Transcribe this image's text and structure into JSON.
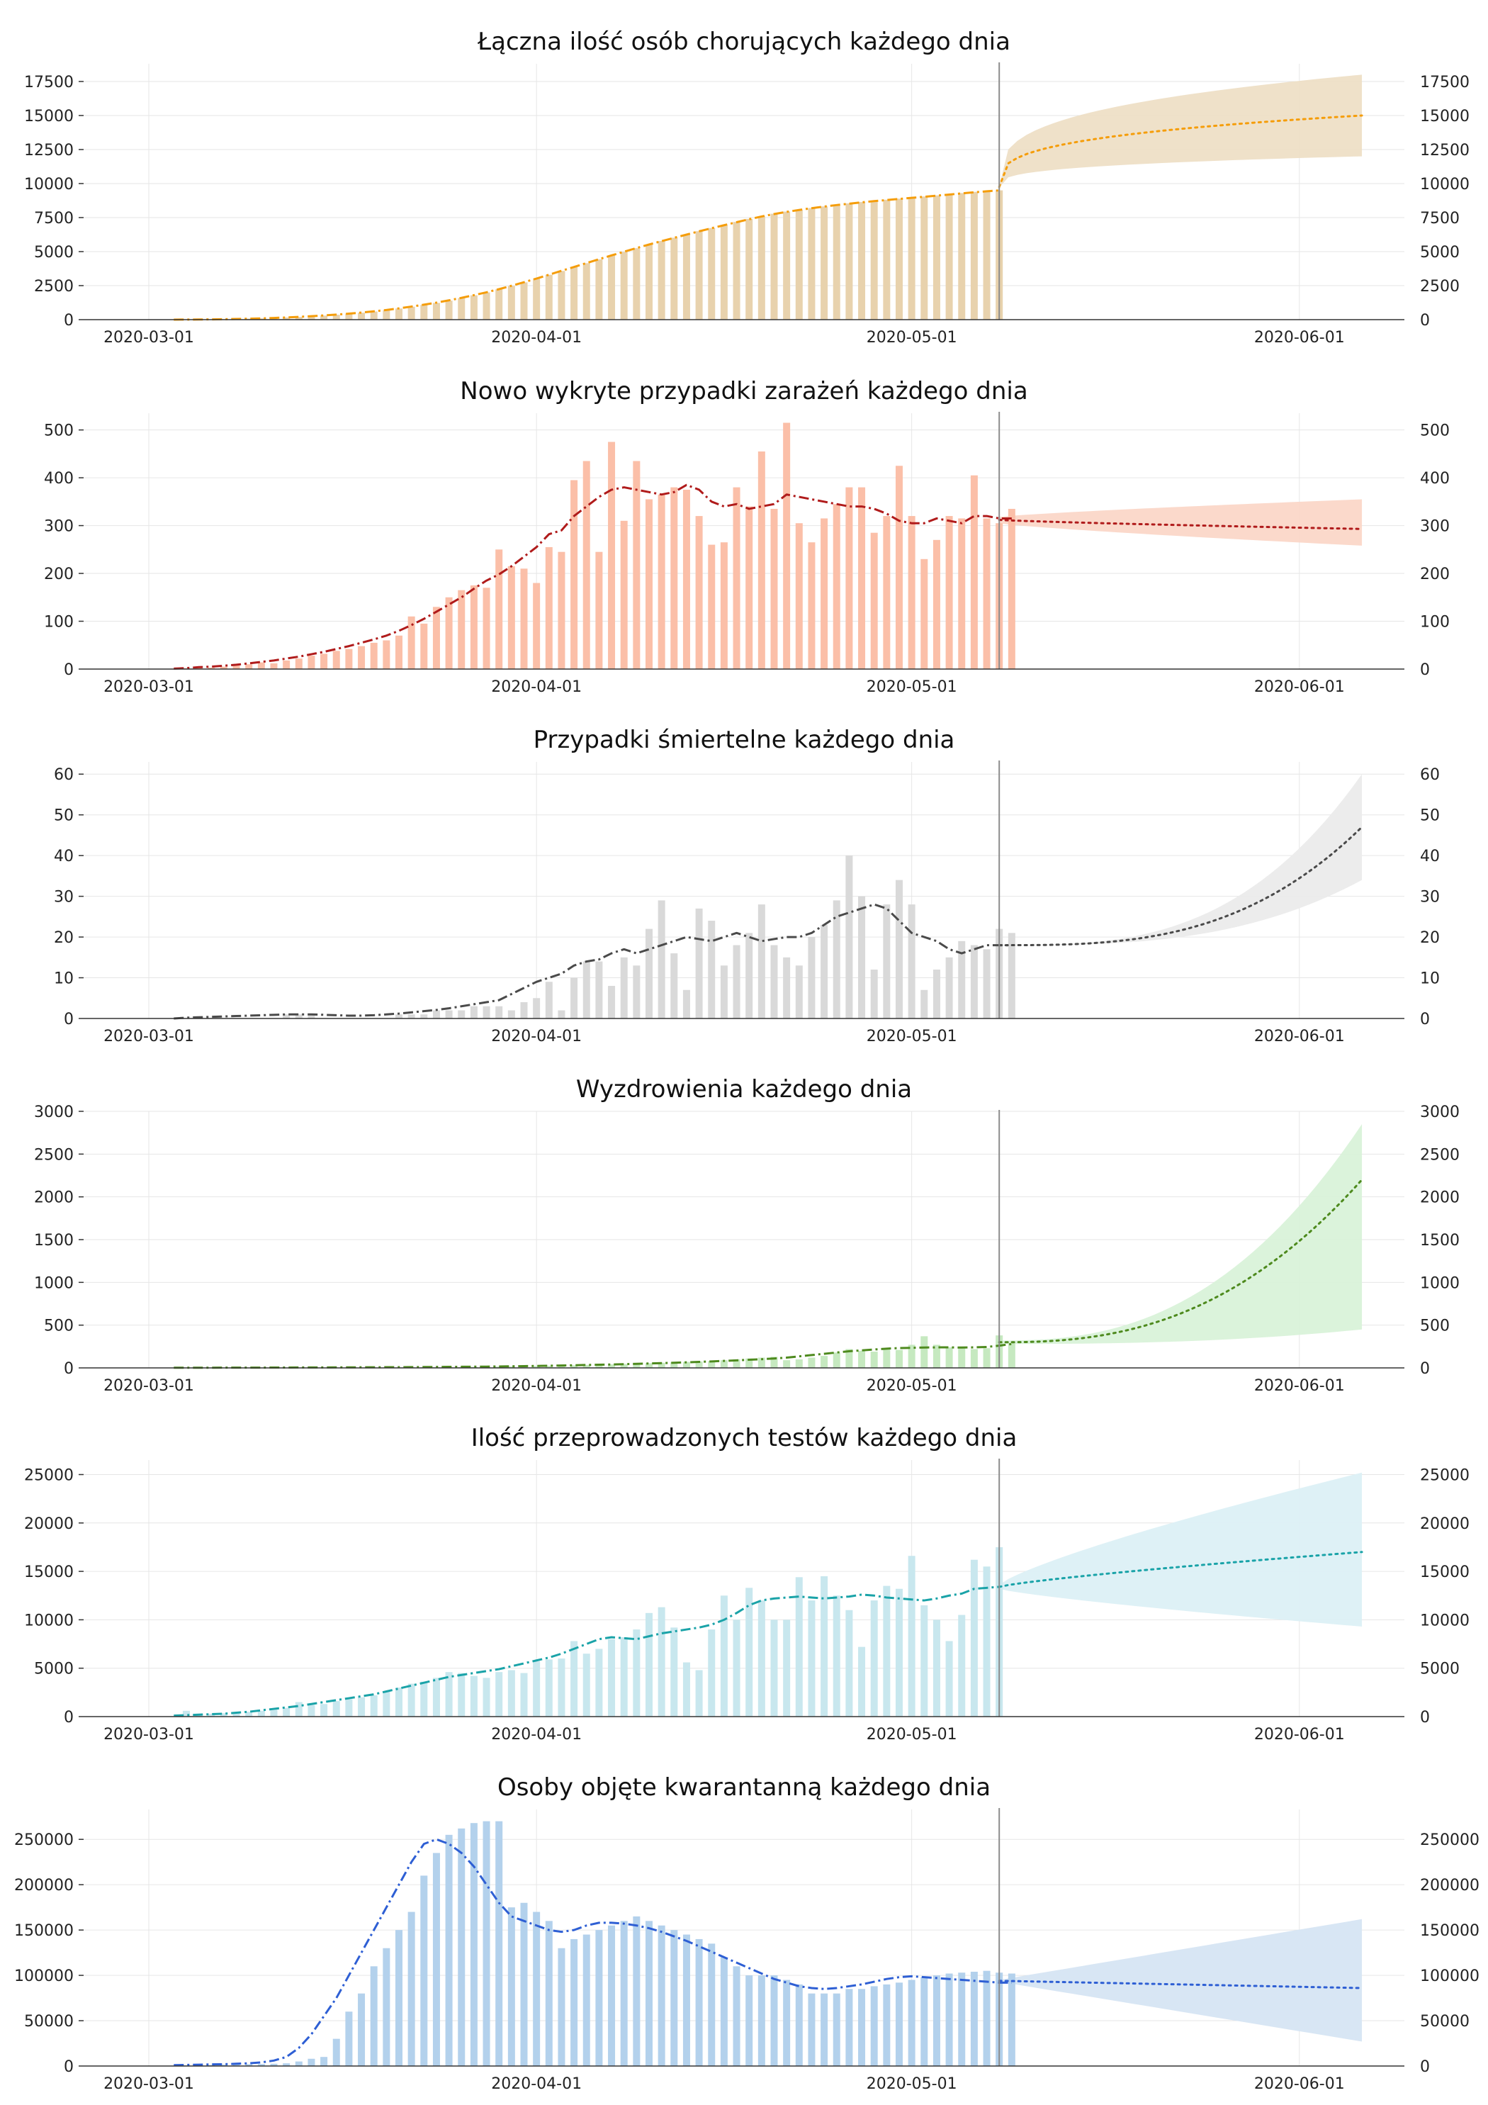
{
  "chart_data": [
    {
      "type": "bar",
      "title": "Łączna ilość osób chorujących każdego dnia",
      "date_labels": [
        "2020-03-01",
        "2020-04-01",
        "2020-05-01",
        "2020-06-01"
      ],
      "yticks": [
        0,
        2500,
        5000,
        7500,
        10000,
        12500,
        15000,
        17500
      ],
      "ylim": [
        0,
        18800
      ],
      "bar_color": "#e8d2ad",
      "line_color": "#f59d0a",
      "band_color": "#eedfc6",
      "start_day": 2,
      "values": [
        2,
        5,
        10,
        20,
        30,
        50,
        70,
        90,
        120,
        160,
        200,
        250,
        300,
        360,
        430,
        510,
        600,
        700,
        820,
        950,
        1080,
        1230,
        1400,
        1580,
        1790,
        2000,
        2230,
        2480,
        2740,
        3020,
        3300,
        3580,
        3870,
        4150,
        4430,
        4720,
        4980,
        5250,
        5520,
        5780,
        6020,
        6260,
        6500,
        6730,
        6950,
        7180,
        7400,
        7600,
        7780,
        7940,
        8080,
        8200,
        8320,
        8430,
        8540,
        8640,
        8730,
        8810,
        8890,
        8970,
        9050,
        9130,
        9210,
        9300,
        9390,
        9460,
        9500
      ],
      "trend": [
        3,
        6,
        11,
        20,
        32,
        50,
        70,
        95,
        125,
        160,
        205,
        255,
        310,
        370,
        440,
        520,
        610,
        710,
        830,
        960,
        1100,
        1250,
        1420,
        1600,
        1800,
        2010,
        2240,
        2490,
        2750,
        3020,
        3300,
        3590,
        3870,
        4160,
        4440,
        4720,
        4990,
        5260,
        5520,
        5770,
        6010,
        6250,
        6490,
        6720,
        6940,
        7160,
        7380,
        7580,
        7760,
        7920,
        8060,
        8190,
        8310,
        8420,
        8520,
        8620,
        8710,
        8790,
        8870,
        8950,
        9030,
        9110,
        9190,
        9280,
        9360,
        9430,
        9500
      ],
      "forecast_start_day": 68,
      "forecast_end_day": 97,
      "forecast_mid": [
        9750,
        15000
      ],
      "forecast_lower": [
        9700,
        12000
      ],
      "forecast_upper": [
        9800,
        18000
      ],
      "forecast_curve": 0.3
    },
    {
      "type": "bar",
      "title": "Nowo wykryte przypadki zarażeń każdego dnia",
      "date_labels": [
        "2020-03-01",
        "2020-04-01",
        "2020-05-01",
        "2020-06-01"
      ],
      "yticks": [
        0,
        100,
        200,
        300,
        400,
        500
      ],
      "ylim": [
        0,
        535
      ],
      "bar_color": "#fbbfa8",
      "line_color": "#b01b1b",
      "band_color": "#fbd7c8",
      "start_day": 2,
      "values": [
        1,
        2,
        4,
        3,
        5,
        8,
        10,
        14,
        12,
        18,
        22,
        28,
        32,
        38,
        42,
        48,
        55,
        60,
        70,
        110,
        95,
        130,
        150,
        165,
        175,
        170,
        250,
        215,
        210,
        180,
        255,
        245,
        395,
        435,
        245,
        475,
        310,
        435,
        355,
        365,
        380,
        375,
        320,
        260,
        265,
        380,
        340,
        455,
        335,
        515,
        305,
        265,
        315,
        345,
        380,
        380,
        285,
        320,
        425,
        320,
        230,
        270,
        320,
        315,
        405,
        315,
        305,
        335
      ],
      "trend": [
        1,
        2,
        4,
        5,
        7,
        9,
        12,
        15,
        18,
        22,
        26,
        31,
        36,
        42,
        48,
        55,
        62,
        70,
        80,
        92,
        105,
        120,
        135,
        150,
        168,
        185,
        198,
        215,
        235,
        255,
        282,
        290,
        320,
        340,
        360,
        375,
        380,
        375,
        370,
        365,
        370,
        385,
        375,
        350,
        340,
        345,
        335,
        340,
        345,
        365,
        360,
        355,
        350,
        345,
        340,
        340,
        335,
        325,
        310,
        305,
        305,
        315,
        310,
        305,
        320,
        320,
        315,
        315
      ],
      "forecast_start_day": 68,
      "forecast_end_day": 97,
      "forecast_mid": [
        312,
        293
      ],
      "forecast_lower": [
        305,
        258
      ],
      "forecast_upper": [
        318,
        355
      ],
      "forecast_curve": 0.8
    },
    {
      "type": "bar",
      "title": "Przypadki śmiertelne każdego dnia",
      "date_labels": [
        "2020-03-01",
        "2020-04-01",
        "2020-05-01",
        "2020-06-01"
      ],
      "yticks": [
        0,
        10,
        20,
        30,
        40,
        50,
        60
      ],
      "ylim": [
        0,
        63
      ],
      "bar_color": "#d9d9d9",
      "line_color": "#4a4a4a",
      "band_color": "#ebebeb",
      "start_day": 2,
      "values": [
        0,
        0,
        0,
        0,
        0,
        0,
        0,
        0,
        0,
        1,
        1,
        1,
        0,
        0,
        0,
        0,
        0,
        0,
        1,
        1,
        1,
        2,
        2,
        2,
        3,
        3,
        3,
        2,
        4,
        5,
        9,
        2,
        10,
        14,
        14,
        8,
        15,
        13,
        22,
        29,
        16,
        7,
        27,
        24,
        13,
        18,
        21,
        28,
        18,
        15,
        13,
        20,
        23,
        29,
        40,
        30,
        12,
        28,
        34,
        28,
        7,
        12,
        15,
        19,
        18,
        17,
        22,
        21
      ],
      "trend": [
        0,
        0.2,
        0.3,
        0.4,
        0.5,
        0.6,
        0.7,
        0.8,
        0.9,
        1,
        1,
        1,
        0.9,
        0.8,
        0.7,
        0.7,
        0.8,
        1,
        1.2,
        1.5,
        1.8,
        2.1,
        2.5,
        3,
        3.5,
        4,
        4.5,
        6,
        7.5,
        9,
        10,
        11,
        13,
        14,
        14.5,
        16,
        17,
        16,
        17,
        18,
        19,
        20,
        19.5,
        19,
        20,
        21,
        20,
        19,
        19.5,
        20,
        20,
        21,
        23,
        25,
        26,
        27,
        28,
        27,
        24,
        21,
        20,
        19,
        17,
        16,
        17,
        18,
        18,
        18
      ],
      "forecast_start_day": 68,
      "forecast_end_day": 97,
      "forecast_mid": [
        18,
        47
      ],
      "forecast_lower": [
        18,
        34
      ],
      "forecast_upper": [
        18,
        60
      ],
      "forecast_curve": 3.0
    },
    {
      "type": "bar",
      "title": "Wyzdrowienia każdego dnia",
      "date_labels": [
        "2020-03-01",
        "2020-04-01",
        "2020-05-01",
        "2020-06-01"
      ],
      "yticks": [
        0,
        500,
        1000,
        1500,
        2000,
        2500,
        3000
      ],
      "ylim": [
        0,
        3000
      ],
      "bar_color": "#c6e9c0",
      "line_color": "#4e8a1e",
      "band_color": "#d9f2d9",
      "start_day": 2,
      "values": [
        0,
        0,
        0,
        0,
        0,
        0,
        0,
        0,
        1,
        1,
        2,
        2,
        3,
        3,
        4,
        4,
        5,
        5,
        6,
        7,
        8,
        9,
        10,
        10,
        12,
        14,
        16,
        18,
        20,
        22,
        25,
        28,
        30,
        35,
        38,
        42,
        46,
        50,
        55,
        60,
        65,
        70,
        75,
        80,
        90,
        100,
        110,
        120,
        130,
        90,
        100,
        120,
        140,
        180,
        220,
        200,
        190,
        230,
        210,
        270,
        370,
        270,
        240,
        230,
        220,
        230,
        380,
        290
      ],
      "trend": [
        2,
        2,
        2,
        2,
        3,
        3,
        3,
        3,
        4,
        4,
        5,
        5,
        5,
        6,
        6,
        7,
        7,
        8,
        8,
        9,
        10,
        11,
        12,
        13,
        14,
        15,
        17,
        19,
        21,
        23,
        25,
        28,
        31,
        34,
        37,
        40,
        44,
        48,
        52,
        56,
        60,
        65,
        70,
        76,
        82,
        88,
        95,
        102,
        110,
        120,
        135,
        150,
        165,
        180,
        195,
        205,
        215,
        225,
        232,
        235,
        238,
        240,
        240,
        238,
        240,
        245,
        260,
        280
      ],
      "forecast_start_day": 68,
      "forecast_end_day": 97,
      "forecast_mid": [
        300,
        2200
      ],
      "forecast_lower": [
        280,
        450
      ],
      "forecast_upper": [
        320,
        2850
      ],
      "forecast_curve": 2.5
    },
    {
      "type": "bar",
      "title": "Ilość przeprowadzonych testów każdego dnia",
      "date_labels": [
        "2020-03-01",
        "2020-04-01",
        "2020-05-01",
        "2020-06-01"
      ],
      "yticks": [
        0,
        5000,
        10000,
        15000,
        20000,
        25000
      ],
      "ylim": [
        0,
        26500
      ],
      "bar_color": "#c8e7ee",
      "line_color": "#1aa3a8",
      "band_color": "#dcf0f6",
      "start_day": 2,
      "values": [
        50,
        600,
        250,
        300,
        350,
        400,
        500,
        600,
        800,
        900,
        1500,
        1200,
        1300,
        1600,
        1800,
        2000,
        2200,
        2600,
        3000,
        3400,
        3600,
        4000,
        4600,
        4500,
        4200,
        4000,
        4600,
        4800,
        4500,
        5700,
        5900,
        6000,
        7800,
        6500,
        7000,
        8000,
        8200,
        9000,
        10700,
        11300,
        9200,
        5600,
        4800,
        9000,
        12500,
        10000,
        13300,
        12000,
        10000,
        10000,
        14400,
        12000,
        14500,
        12500,
        11000,
        7200,
        12000,
        13500,
        13200,
        16600,
        11500,
        10000,
        7800,
        10500,
        16200,
        15500,
        17500
      ],
      "trend": [
        100,
        150,
        200,
        250,
        300,
        400,
        500,
        650,
        800,
        950,
        1100,
        1300,
        1500,
        1700,
        1900,
        2100,
        2300,
        2600,
        2900,
        3200,
        3500,
        3800,
        4100,
        4300,
        4500,
        4700,
        4900,
        5200,
        5500,
        5800,
        6100,
        6500,
        7000,
        7500,
        8000,
        8200,
        8100,
        8000,
        8300,
        8600,
        8800,
        9000,
        9200,
        9500,
        10000,
        10700,
        11500,
        12000,
        12200,
        12300,
        12400,
        12300,
        12200,
        12300,
        12400,
        12600,
        12500,
        12300,
        12200,
        12100,
        12000,
        12200,
        12500,
        12700,
        13200,
        13300,
        13400
      ],
      "forecast_start_day": 68,
      "forecast_end_day": 97,
      "forecast_mid": [
        13400,
        17000
      ],
      "forecast_lower": [
        13200,
        9300
      ],
      "forecast_upper": [
        13600,
        25200
      ],
      "forecast_curve": 0.8
    },
    {
      "type": "bar",
      "title": "Osoby objęte kwarantanną każdego dnia",
      "date_labels": [
        "2020-03-01",
        "2020-04-01",
        "2020-05-01",
        "2020-06-01"
      ],
      "yticks": [
        0,
        50000,
        100000,
        150000,
        200000,
        250000
      ],
      "ylim": [
        0,
        283000
      ],
      "bar_color": "#b3d1ec",
      "line_color": "#2e5fd4",
      "band_color": "#d6e5f3",
      "start_day": 2,
      "values": [
        500,
        800,
        1000,
        1200,
        1500,
        1800,
        2000,
        2200,
        2500,
        3000,
        5000,
        8000,
        10000,
        30000,
        60000,
        80000,
        110000,
        130000,
        150000,
        170000,
        210000,
        235000,
        255000,
        262000,
        268000,
        270000,
        270000,
        175000,
        180000,
        170000,
        160000,
        130000,
        140000,
        145000,
        150000,
        155000,
        160000,
        165000,
        160000,
        155000,
        150000,
        145000,
        140000,
        135000,
        120000,
        110000,
        100000,
        100000,
        100000,
        95000,
        90000,
        80000,
        80000,
        80000,
        85000,
        85000,
        88000,
        90000,
        92000,
        95000,
        98000,
        100000,
        102000,
        103000,
        104000,
        105000,
        103000,
        102000
      ],
      "trend": [
        1000,
        1200,
        1500,
        1800,
        2000,
        2500,
        3000,
        4000,
        6000,
        10000,
        20000,
        35000,
        55000,
        75000,
        100000,
        125000,
        150000,
        175000,
        200000,
        225000,
        245000,
        250000,
        245000,
        235000,
        220000,
        200000,
        180000,
        165000,
        160000,
        155000,
        150000,
        148000,
        150000,
        155000,
        158000,
        158000,
        157000,
        155000,
        152000,
        148000,
        143000,
        138000,
        132000,
        126000,
        120000,
        114000,
        108000,
        102000,
        96000,
        92000,
        88000,
        86000,
        85000,
        86000,
        88000,
        90000,
        93000,
        96000,
        98000,
        99000,
        98000,
        97000,
        96000,
        95000,
        94000,
        93000,
        92000,
        92000
      ],
      "forecast_start_day": 68,
      "forecast_end_day": 97,
      "forecast_mid": [
        94000,
        86000
      ],
      "forecast_lower": [
        93000,
        27000
      ],
      "forecast_upper": [
        95000,
        162000
      ],
      "forecast_curve": 1.0
    }
  ]
}
